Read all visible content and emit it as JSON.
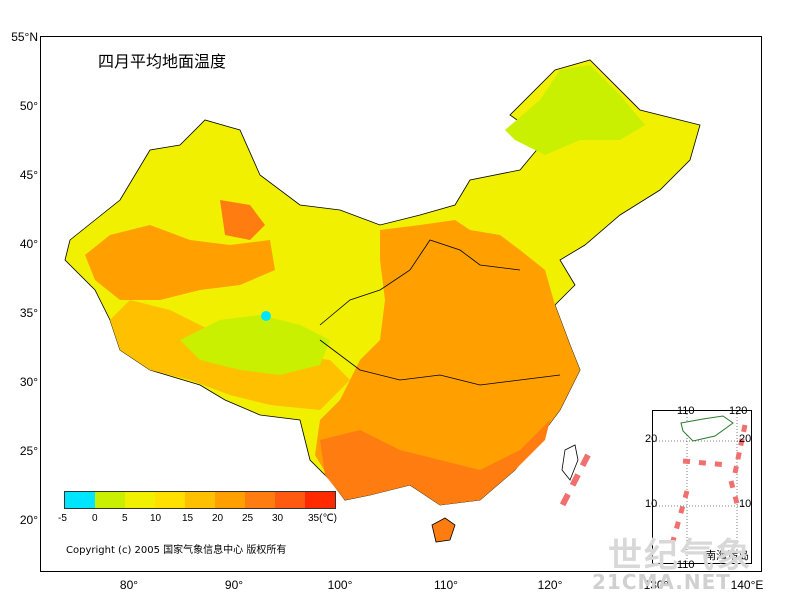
{
  "title": "四月平均地面温度",
  "copyright": "Copyright (c) 2005 国家气象信息中心 版权所有",
  "lat_ticks": [
    "55°N",
    "50°",
    "45°",
    "40°",
    "35°",
    "30°",
    "25°",
    "20°"
  ],
  "lon_ticks": [
    "80°",
    "90°",
    "100°",
    "110°",
    "120°",
    "130°",
    "140°E"
  ],
  "legend": {
    "labels": [
      "-5",
      "0",
      "5",
      "10",
      "15",
      "20",
      "25",
      "30",
      "35(℃)"
    ],
    "colors": [
      "#00e5ff",
      "#c8f000",
      "#f0f000",
      "#ffe000",
      "#ffc000",
      "#ffa000",
      "#ff7c10",
      "#ff5a10",
      "#ff2a00"
    ]
  },
  "inset": {
    "caption": "南海诸岛",
    "top_labels": [
      "110",
      "120"
    ],
    "lat_labels": [
      "20",
      "10"
    ],
    "right_labels": [
      "20",
      "10"
    ],
    "bottom_label": "110"
  },
  "watermark": {
    "logo_text": "世纪气象",
    "url": "21CMA.NET"
  },
  "colors": {
    "land_low": "#f0f000",
    "land_mid": "#ffc000",
    "land_high": "#ffa000",
    "land_hot": "#ff7c10",
    "cold": "#c8f000",
    "ice": "#00e5ff",
    "dash": "#f07070"
  }
}
